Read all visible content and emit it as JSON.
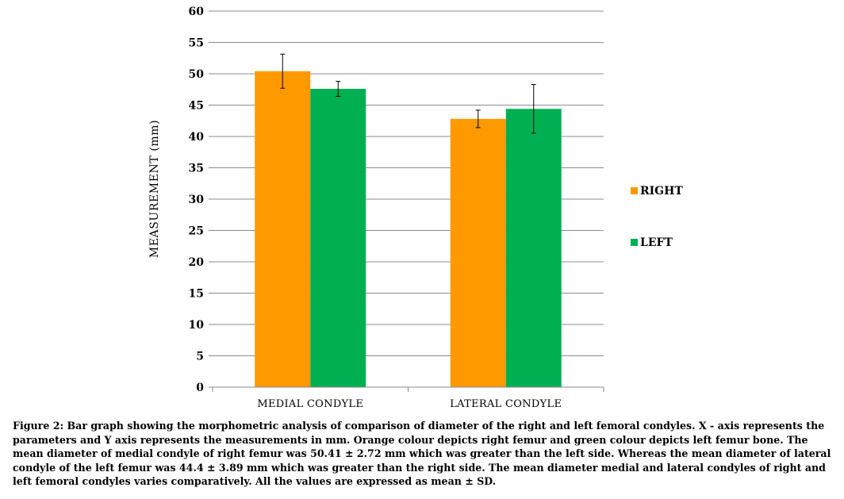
{
  "chart_data": {
    "type": "bar",
    "title": "",
    "xlabel": "",
    "ylabel": "MEASUREMENT  (mm)",
    "ylim": [
      0,
      60
    ],
    "yticks": [
      0,
      5,
      10,
      15,
      20,
      25,
      30,
      35,
      40,
      45,
      50,
      55,
      60
    ],
    "grid": true,
    "legend_position": "right",
    "categories": [
      "MEDIAL CONDYLE",
      "LATERAL CONDYLE"
    ],
    "series": [
      {
        "name": "RIGHT",
        "color": "#FF9900",
        "values": [
          50.41,
          42.8
        ],
        "errors": [
          2.72,
          1.4
        ]
      },
      {
        "name": "LEFT",
        "color": "#00B050",
        "values": [
          47.6,
          44.4
        ],
        "errors": [
          1.2,
          3.89
        ]
      }
    ]
  },
  "caption": "Figure 2: Bar graph showing the morphometric analysis of comparison of diameter of the right and left femoral condyles. X - axis represents the parameters and Y axis represents the measurements in mm. Orange colour depicts right femur and green colour depicts left femur bone. The mean diameter of medial condyle of right femur was 50.41 ± 2.72 mm which was greater than the left side. Whereas the mean diameter of lateral condyle of the left femur was 44.4 ± 3.89 mm which was greater than the right side. The mean diameter medial and lateral condyles of right and left femoral condyles varies comparatively. All the values are expressed as mean ± SD."
}
